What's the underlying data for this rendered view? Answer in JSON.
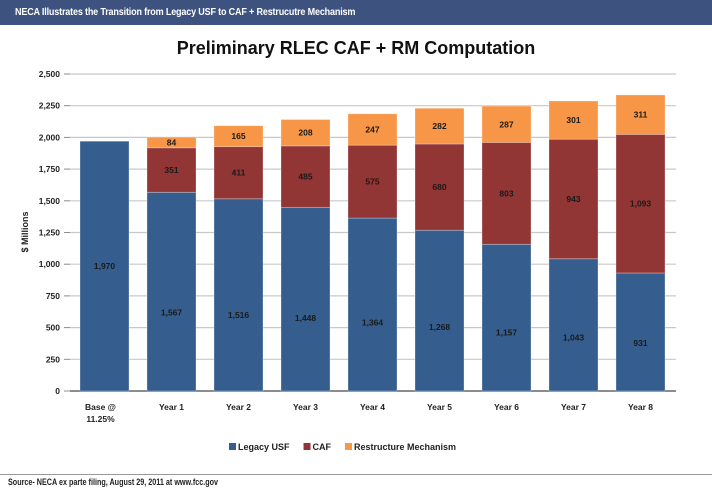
{
  "header": {
    "title": "NECA Illustrates the Transition from Legacy USF to CAF + Restrucutre Mechanism"
  },
  "footer": {
    "source": "Source- NECA ex parte filing, August 29, 2011 at www.fcc.gov"
  },
  "chart_data": {
    "type": "bar",
    "stacked": true,
    "title": "Preliminary RLEC CAF + RM Computation",
    "xlabel": "",
    "ylabel": "$ Millions",
    "ylim": [
      0,
      2500
    ],
    "yticks": [
      0,
      250,
      500,
      750,
      1000,
      1250,
      1500,
      1750,
      2000,
      2250,
      2500
    ],
    "ytick_labels": [
      "0",
      "250",
      "500",
      "750",
      "1,000",
      "1,250",
      "1,500",
      "1,750",
      "2,000",
      "2,250",
      "2,500"
    ],
    "grid": true,
    "legend_position": "bottom",
    "categories": [
      [
        "Base @",
        "11.25%"
      ],
      [
        "Year 1"
      ],
      [
        "Year 2"
      ],
      [
        "Year 3"
      ],
      [
        "Year 4"
      ],
      [
        "Year 5"
      ],
      [
        "Year 6"
      ],
      [
        "Year 7"
      ],
      [
        "Year 8"
      ]
    ],
    "series": [
      {
        "name": "Legacy USF",
        "color": "#355e8e",
        "values": [
          1970,
          1567,
          1516,
          1448,
          1364,
          1268,
          1157,
          1043,
          931
        ],
        "labels": [
          "1,970",
          "1,567",
          "1,516",
          "1,448",
          "1,364",
          "1,268",
          "1,157",
          "1,043",
          "931"
        ]
      },
      {
        "name": "CAF",
        "color": "#923535",
        "values": [
          0,
          351,
          411,
          485,
          575,
          680,
          803,
          943,
          1093
        ],
        "labels": [
          "",
          "351",
          "411",
          "485",
          "575",
          "680",
          "803",
          "943",
          "1,093"
        ]
      },
      {
        "name": "Restructure Mechanism",
        "color": "#f79646",
        "values": [
          0,
          84,
          165,
          208,
          247,
          282,
          287,
          301,
          311
        ],
        "labels": [
          "",
          "84",
          "165",
          "208",
          "247",
          "282",
          "287",
          "301",
          "311"
        ]
      }
    ]
  }
}
